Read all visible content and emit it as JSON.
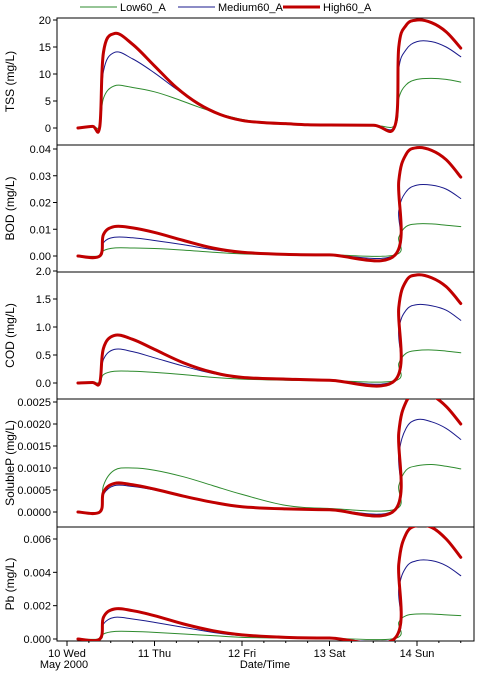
{
  "legend": {
    "items": [
      {
        "label": "Low60_A",
        "color": "#2e8b2e"
      },
      {
        "label": "Medium60_A",
        "color": "#1a1a8c"
      },
      {
        "label": "High60_A",
        "color": "#c00000"
      }
    ]
  },
  "x_axis": {
    "label": "Date/Time",
    "ticks": [
      "10 Wed",
      "11 Thu",
      "12 Fri",
      "13 Sat",
      "14 Sun"
    ],
    "sublabel": "May 2000"
  },
  "chart_data": [
    {
      "type": "line",
      "ylabel": "TSS (mg/L)",
      "ylim": [
        0,
        20
      ],
      "yticks": [
        "0",
        "5",
        "10",
        "15",
        "20"
      ],
      "xlim": [
        "2000-05-10",
        "2000-05-14 12:00"
      ],
      "series": [
        {
          "name": "Low60_A",
          "x": [
            "2000-05-10 03:00",
            "2000-05-10 07:00",
            "2000-05-10 09:00",
            "2000-05-10 10:00",
            "2000-05-10 13:00",
            "2000-05-10 18:00",
            "2000-05-11 00:00",
            "2000-05-11 06:00",
            "2000-05-11 12:00",
            "2000-05-11 18:00",
            "2000-05-12 00:00",
            "2000-05-12 06:00",
            "2000-05-12 12:00",
            "2000-05-12 18:00",
            "2000-05-13 00:00",
            "2000-05-13 12:00",
            "2000-05-13 18:00",
            "2000-05-13 19:00",
            "2000-05-13 21:00",
            "2000-05-14 00:00",
            "2000-05-14 04:00",
            "2000-05-14 08:00",
            "2000-05-14 12:00"
          ],
          "values": [
            0,
            0.3,
            0.3,
            5.5,
            7.8,
            7.5,
            6.7,
            5.4,
            3.9,
            2.6,
            1.6,
            1.0,
            0.8,
            0.6,
            0.55,
            0.5,
            0.5,
            5.5,
            8.0,
            9.0,
            9.2,
            9.0,
            8.5
          ]
        },
        {
          "name": "Medium60_A",
          "x": [
            "2000-05-10 03:00",
            "2000-05-10 07:00",
            "2000-05-10 09:00",
            "2000-05-10 10:00",
            "2000-05-10 13:00",
            "2000-05-10 18:00",
            "2000-05-11 00:00",
            "2000-05-11 06:00",
            "2000-05-11 12:00",
            "2000-05-11 18:00",
            "2000-05-12 00:00",
            "2000-05-12 06:00",
            "2000-05-12 12:00",
            "2000-05-12 18:00",
            "2000-05-13 00:00",
            "2000-05-13 12:00",
            "2000-05-13 18:00",
            "2000-05-13 19:00",
            "2000-05-13 21:00",
            "2000-05-14 00:00",
            "2000-05-14 04:00",
            "2000-05-14 08:00",
            "2000-05-14 12:00"
          ],
          "values": [
            0,
            0.3,
            0.3,
            10.5,
            14.0,
            12.8,
            10.2,
            7.2,
            4.5,
            2.6,
            1.5,
            1.0,
            0.8,
            0.6,
            0.55,
            0.5,
            0.5,
            11.0,
            14.5,
            16.0,
            16.0,
            15.0,
            13.2
          ]
        },
        {
          "name": "High60_A",
          "x": [
            "2000-05-10 03:00",
            "2000-05-10 07:00",
            "2000-05-10 09:00",
            "2000-05-10 10:00",
            "2000-05-10 13:00",
            "2000-05-10 18:00",
            "2000-05-11 00:00",
            "2000-05-11 06:00",
            "2000-05-11 12:00",
            "2000-05-11 18:00",
            "2000-05-12 00:00",
            "2000-05-12 06:00",
            "2000-05-12 12:00",
            "2000-05-12 18:00",
            "2000-05-13 00:00",
            "2000-05-13 12:00",
            "2000-05-13 18:00",
            "2000-05-13 19:00",
            "2000-05-13 21:00",
            "2000-05-14 00:00",
            "2000-05-14 04:00",
            "2000-05-14 08:00",
            "2000-05-14 12:00"
          ],
          "values": [
            0,
            0.3,
            0.3,
            14.0,
            17.5,
            15.5,
            11.5,
            7.5,
            4.5,
            2.5,
            1.4,
            1.0,
            0.8,
            0.6,
            0.55,
            0.5,
            0.5,
            15.0,
            19.0,
            20.0,
            19.5,
            17.8,
            14.8
          ]
        }
      ]
    },
    {
      "type": "line",
      "ylabel": "BOD (mg/L)",
      "ylim": [
        0,
        0.04
      ],
      "yticks": [
        "0.00",
        "0.01",
        "0.02",
        "0.03",
        "0.04"
      ],
      "xlim": [
        "2000-05-10",
        "2000-05-14 12:00"
      ],
      "series": [
        {
          "name": "Low60_A",
          "x": [
            "2000-05-10 03:00",
            "2000-05-10 09:00",
            "2000-05-10 10:00",
            "2000-05-10 13:00",
            "2000-05-10 18:00",
            "2000-05-11 00:00",
            "2000-05-11 08:00",
            "2000-05-11 16:00",
            "2000-05-12 00:00",
            "2000-05-12 12:00",
            "2000-05-13 00:00",
            "2000-05-13 18:00",
            "2000-05-13 19:00",
            "2000-05-13 21:00",
            "2000-05-14 00:00",
            "2000-05-14 04:00",
            "2000-05-14 08:00",
            "2000-05-14 12:00"
          ],
          "values": [
            0,
            0,
            0.002,
            0.003,
            0.003,
            0.0028,
            0.0022,
            0.0014,
            0.0008,
            0.0005,
            0.0004,
            0.0004,
            0.007,
            0.011,
            0.012,
            0.012,
            0.0115,
            0.011
          ]
        },
        {
          "name": "Medium60_A",
          "x": [
            "2000-05-10 03:00",
            "2000-05-10 09:00",
            "2000-05-10 10:00",
            "2000-05-10 13:00",
            "2000-05-10 18:00",
            "2000-05-11 00:00",
            "2000-05-11 08:00",
            "2000-05-11 16:00",
            "2000-05-12 00:00",
            "2000-05-12 12:00",
            "2000-05-13 00:00",
            "2000-05-13 18:00",
            "2000-05-13 19:00",
            "2000-05-13 21:00",
            "2000-05-14 00:00",
            "2000-05-14 04:00",
            "2000-05-14 08:00",
            "2000-05-14 12:00"
          ],
          "values": [
            0,
            0,
            0.005,
            0.007,
            0.0068,
            0.0058,
            0.0042,
            0.0024,
            0.0012,
            0.0006,
            0.0004,
            0.0004,
            0.017,
            0.024,
            0.0265,
            0.0265,
            0.025,
            0.0215
          ]
        },
        {
          "name": "High60_A",
          "x": [
            "2000-05-10 03:00",
            "2000-05-10 09:00",
            "2000-05-10 10:00",
            "2000-05-10 13:00",
            "2000-05-10 18:00",
            "2000-05-11 00:00",
            "2000-05-11 08:00",
            "2000-05-11 16:00",
            "2000-05-12 00:00",
            "2000-05-12 12:00",
            "2000-05-13 00:00",
            "2000-05-13 18:00",
            "2000-05-13 19:00",
            "2000-05-13 21:00",
            "2000-05-14 00:00",
            "2000-05-14 04:00",
            "2000-05-14 08:00",
            "2000-05-14 12:00"
          ],
          "values": [
            0,
            0,
            0.008,
            0.011,
            0.0105,
            0.0088,
            0.0058,
            0.003,
            0.0014,
            0.0006,
            0.0004,
            0.0004,
            0.028,
            0.038,
            0.0405,
            0.0395,
            0.036,
            0.0295
          ]
        }
      ]
    },
    {
      "type": "line",
      "ylabel": "COD (mg/L)",
      "ylim": [
        0,
        2.0
      ],
      "yticks": [
        "0.0",
        "0.5",
        "1.0",
        "1.5",
        "2.0"
      ],
      "xlim": [
        "2000-05-10",
        "2000-05-14 12:00"
      ],
      "series": [
        {
          "name": "Low60_A",
          "x": [
            "2000-05-10 03:00",
            "2000-05-10 07:00",
            "2000-05-10 09:00",
            "2000-05-10 10:00",
            "2000-05-10 13:00",
            "2000-05-10 18:00",
            "2000-05-11 00:00",
            "2000-05-11 08:00",
            "2000-05-11 16:00",
            "2000-05-12 00:00",
            "2000-05-12 12:00",
            "2000-05-13 00:00",
            "2000-05-13 18:00",
            "2000-05-13 19:00",
            "2000-05-13 21:00",
            "2000-05-14 00:00",
            "2000-05-14 04:00",
            "2000-05-14 08:00",
            "2000-05-14 12:00"
          ],
          "values": [
            0,
            0.01,
            0.01,
            0.15,
            0.21,
            0.21,
            0.19,
            0.15,
            0.1,
            0.07,
            0.05,
            0.04,
            0.04,
            0.35,
            0.53,
            0.58,
            0.59,
            0.57,
            0.54
          ]
        },
        {
          "name": "Medium60_A",
          "x": [
            "2000-05-10 03:00",
            "2000-05-10 07:00",
            "2000-05-10 09:00",
            "2000-05-10 10:00",
            "2000-05-10 13:00",
            "2000-05-10 18:00",
            "2000-05-11 00:00",
            "2000-05-11 08:00",
            "2000-05-11 16:00",
            "2000-05-12 00:00",
            "2000-05-12 12:00",
            "2000-05-13 00:00",
            "2000-05-13 18:00",
            "2000-05-13 19:00",
            "2000-05-13 21:00",
            "2000-05-14 00:00",
            "2000-05-14 04:00",
            "2000-05-14 08:00",
            "2000-05-14 12:00"
          ],
          "values": [
            0,
            0.01,
            0.01,
            0.42,
            0.6,
            0.56,
            0.45,
            0.3,
            0.17,
            0.1,
            0.07,
            0.05,
            0.05,
            0.95,
            1.3,
            1.4,
            1.38,
            1.3,
            1.12
          ]
        },
        {
          "name": "High60_A",
          "x": [
            "2000-05-10 03:00",
            "2000-05-10 07:00",
            "2000-05-10 09:00",
            "2000-05-10 10:00",
            "2000-05-10 13:00",
            "2000-05-10 18:00",
            "2000-05-11 00:00",
            "2000-05-11 08:00",
            "2000-05-11 16:00",
            "2000-05-12 00:00",
            "2000-05-12 12:00",
            "2000-05-13 00:00",
            "2000-05-13 18:00",
            "2000-05-13 19:00",
            "2000-05-13 21:00",
            "2000-05-14 00:00",
            "2000-05-14 04:00",
            "2000-05-14 08:00",
            "2000-05-14 12:00"
          ],
          "values": [
            0,
            0.01,
            0.01,
            0.62,
            0.85,
            0.78,
            0.6,
            0.36,
            0.19,
            0.1,
            0.07,
            0.05,
            0.05,
            1.35,
            1.82,
            1.93,
            1.88,
            1.72,
            1.42
          ]
        }
      ]
    },
    {
      "type": "line",
      "ylabel": "SolubleP (mg/L)",
      "ylim": [
        0,
        0.0028
      ],
      "yticks": [
        "0.0000",
        "0.0005",
        "0.0010",
        "0.0015",
        "0.0020",
        "0.0025"
      ],
      "xlim": [
        "2000-05-10",
        "2000-05-14 12:00"
      ],
      "series": [
        {
          "name": "Low60_A",
          "x": [
            "2000-05-10 03:00",
            "2000-05-10 09:00",
            "2000-05-10 10:00",
            "2000-05-10 13:00",
            "2000-05-10 18:00",
            "2000-05-11 00:00",
            "2000-05-11 08:00",
            "2000-05-11 16:00",
            "2000-05-12 00:00",
            "2000-05-12 12:00",
            "2000-05-13 00:00",
            "2000-05-13 18:00",
            "2000-05-13 19:00",
            "2000-05-13 21:00",
            "2000-05-14 00:00",
            "2000-05-14 04:00",
            "2000-05-14 08:00",
            "2000-05-14 12:00"
          ],
          "values": [
            0,
            0,
            0.0006,
            0.00095,
            0.001,
            0.00095,
            0.0008,
            0.0006,
            0.0004,
            0.00015,
            8e-05,
            6e-05,
            0.0006,
            0.00095,
            0.00105,
            0.00108,
            0.00104,
            0.00098
          ]
        },
        {
          "name": "Medium60_A",
          "x": [
            "2000-05-10 03:00",
            "2000-05-10 09:00",
            "2000-05-10 10:00",
            "2000-05-10 13:00",
            "2000-05-10 18:00",
            "2000-05-11 00:00",
            "2000-05-11 08:00",
            "2000-05-11 16:00",
            "2000-05-12 00:00",
            "2000-05-12 12:00",
            "2000-05-13 00:00",
            "2000-05-13 18:00",
            "2000-05-13 19:00",
            "2000-05-13 21:00",
            "2000-05-14 00:00",
            "2000-05-14 04:00",
            "2000-05-14 08:00",
            "2000-05-14 12:00"
          ],
          "values": [
            0,
            0,
            0.0004,
            0.0006,
            0.00058,
            0.0005,
            0.00036,
            0.00022,
            0.00012,
            7e-05,
            5e-05,
            5e-05,
            0.0013,
            0.0019,
            0.0021,
            0.00205,
            0.0019,
            0.00165
          ]
        },
        {
          "name": "High60_A",
          "x": [
            "2000-05-10 03:00",
            "2000-05-10 09:00",
            "2000-05-10 10:00",
            "2000-05-10 13:00",
            "2000-05-10 18:00",
            "2000-05-11 00:00",
            "2000-05-11 08:00",
            "2000-05-11 16:00",
            "2000-05-12 00:00",
            "2000-05-12 12:00",
            "2000-05-13 00:00",
            "2000-05-13 18:00",
            "2000-05-13 19:00",
            "2000-05-13 21:00",
            "2000-05-14 00:00",
            "2000-05-14 04:00",
            "2000-05-14 08:00",
            "2000-05-14 12:00"
          ],
          "values": [
            0,
            0,
            0.00045,
            0.00065,
            0.00062,
            0.00052,
            0.00036,
            0.00022,
            0.00012,
            7e-05,
            5e-05,
            5e-05,
            0.0018,
            0.0025,
            0.0027,
            0.00265,
            0.0024,
            0.002
          ]
        }
      ]
    },
    {
      "type": "line",
      "ylabel": "Pb (mg/L)",
      "ylim": [
        0,
        0.007
      ],
      "yticks": [
        "0.000",
        "0.002",
        "0.004",
        "0.006"
      ],
      "xlim": [
        "2000-05-10",
        "2000-05-14 12:00"
      ],
      "series": [
        {
          "name": "Low60_A",
          "x": [
            "2000-05-10 03:00",
            "2000-05-10 09:00",
            "2000-05-10 10:00",
            "2000-05-10 13:00",
            "2000-05-10 18:00",
            "2000-05-11 00:00",
            "2000-05-11 08:00",
            "2000-05-11 16:00",
            "2000-05-12 00:00",
            "2000-05-12 12:00",
            "2000-05-13 00:00",
            "2000-05-13 18:00",
            "2000-05-13 19:00",
            "2000-05-13 21:00",
            "2000-05-14 00:00",
            "2000-05-14 04:00",
            "2000-05-14 08:00",
            "2000-05-14 12:00"
          ],
          "values": [
            0,
            0,
            0.0003,
            0.00045,
            0.00045,
            0.0004,
            0.0003,
            0.0002,
            0.0001,
            5e-05,
            4e-05,
            4e-05,
            0.001,
            0.0014,
            0.0015,
            0.0015,
            0.00145,
            0.0014
          ]
        },
        {
          "name": "Medium60_A",
          "x": [
            "2000-05-10 03:00",
            "2000-05-10 09:00",
            "2000-05-10 10:00",
            "2000-05-10 13:00",
            "2000-05-10 18:00",
            "2000-05-11 00:00",
            "2000-05-11 08:00",
            "2000-05-11 16:00",
            "2000-05-12 00:00",
            "2000-05-12 12:00",
            "2000-05-13 00:00",
            "2000-05-13 18:00",
            "2000-05-13 19:00",
            "2000-05-13 21:00",
            "2000-05-14 00:00",
            "2000-05-14 04:00",
            "2000-05-14 08:00",
            "2000-05-14 12:00"
          ],
          "values": [
            0,
            0,
            0.0009,
            0.0013,
            0.0012,
            0.001,
            0.0007,
            0.0004,
            0.0002,
            0.0001,
            5e-05,
            5e-05,
            0.003,
            0.0043,
            0.0047,
            0.0047,
            0.0044,
            0.0038
          ]
        },
        {
          "name": "High60_A",
          "x": [
            "2000-05-10 03:00",
            "2000-05-10 09:00",
            "2000-05-10 10:00",
            "2000-05-10 13:00",
            "2000-05-10 18:00",
            "2000-05-11 00:00",
            "2000-05-11 08:00",
            "2000-05-11 16:00",
            "2000-05-12 00:00",
            "2000-05-12 12:00",
            "2000-05-13 00:00",
            "2000-05-13 18:00",
            "2000-05-13 19:00",
            "2000-05-13 21:00",
            "2000-05-14 00:00",
            "2000-05-14 04:00",
            "2000-05-14 08:00",
            "2000-05-14 12:00"
          ],
          "values": [
            0,
            0,
            0.0013,
            0.0018,
            0.0017,
            0.0014,
            0.0009,
            0.0005,
            0.00025,
            0.0001,
            6e-05,
            6e-05,
            0.0045,
            0.0063,
            0.0068,
            0.0067,
            0.006,
            0.0049
          ]
        }
      ]
    }
  ]
}
